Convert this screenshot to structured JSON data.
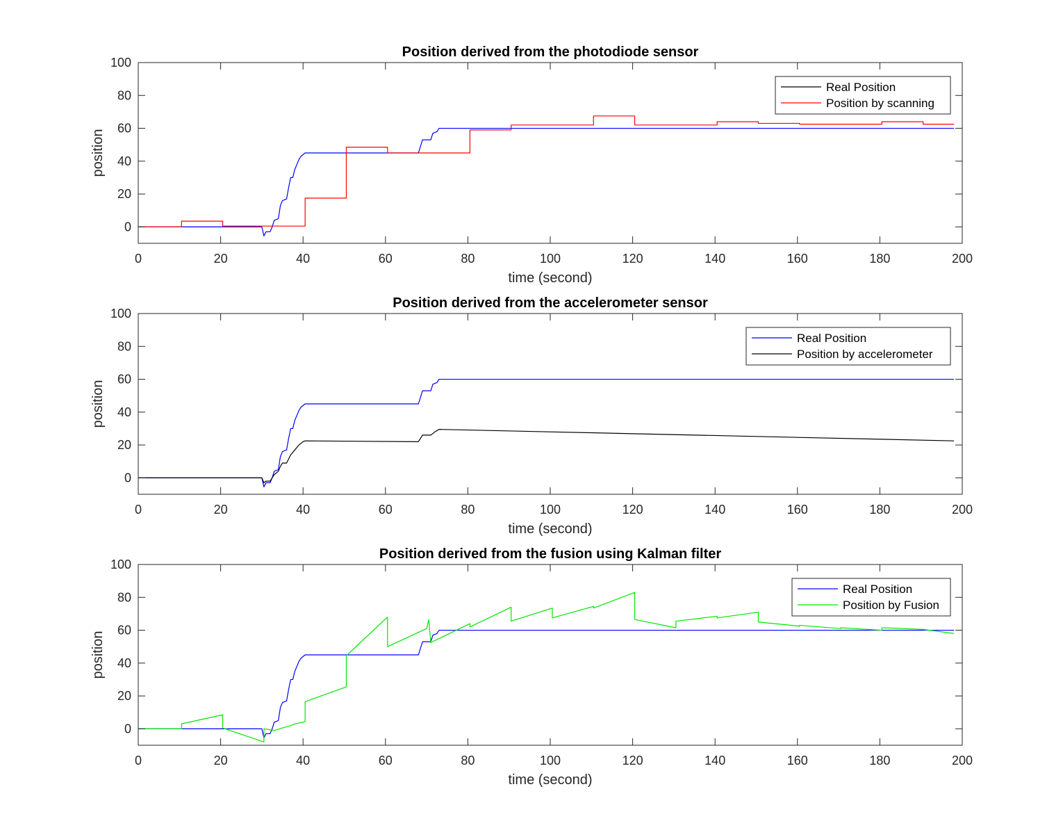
{
  "chart_data": [
    {
      "type": "line",
      "title": "Position derived from the photodiode sensor",
      "xlabel": "time (second)",
      "ylabel": "position",
      "xlim": [
        0,
        200
      ],
      "ylim": [
        -10,
        100
      ],
      "xticks": [
        0,
        20,
        40,
        60,
        80,
        100,
        120,
        140,
        160,
        180,
        200
      ],
      "yticks": [
        0,
        20,
        40,
        60,
        80,
        100
      ],
      "grid": false,
      "legend_position": "top-right",
      "series": [
        {
          "name": "Real Position",
          "color": "#0000ff",
          "legend_color": "#000000",
          "points": [
            [
              0,
              0
            ],
            [
              30,
              0
            ],
            [
              30.5,
              -5.5
            ],
            [
              31,
              -3
            ],
            [
              32,
              -3
            ],
            [
              32.5,
              0
            ],
            [
              33,
              4
            ],
            [
              34,
              5
            ],
            [
              34.5,
              13
            ],
            [
              35,
              16
            ],
            [
              36,
              17
            ],
            [
              36.5,
              24
            ],
            [
              37,
              30
            ],
            [
              37.5,
              30
            ],
            [
              38,
              35
            ],
            [
              38.5,
              38
            ],
            [
              39,
              41
            ],
            [
              39.5,
              43
            ],
            [
              40,
              44
            ],
            [
              40.5,
              45
            ],
            [
              68,
              45
            ],
            [
              69,
              53
            ],
            [
              71,
              53
            ],
            [
              71.5,
              57
            ],
            [
              72.5,
              58
            ],
            [
              73,
              60
            ],
            [
              198,
              60
            ]
          ]
        },
        {
          "name": "Position by scanning",
          "color": "#ff0000",
          "points": [
            [
              0,
              0
            ],
            [
              10.5,
              0
            ],
            [
              10.5,
              3.5
            ],
            [
              20.5,
              3.5
            ],
            [
              20.5,
              0.5
            ],
            [
              40.5,
              0.5
            ],
            [
              40.5,
              17.5
            ],
            [
              50.5,
              17.5
            ],
            [
              50.5,
              48.5
            ],
            [
              60.5,
              48.5
            ],
            [
              60.5,
              45
            ],
            [
              80.5,
              45
            ],
            [
              80.5,
              59
            ],
            [
              90.5,
              59
            ],
            [
              90.5,
              62
            ],
            [
              110.5,
              62
            ],
            [
              110.5,
              67.5
            ],
            [
              120.5,
              67.5
            ],
            [
              120.5,
              62
            ],
            [
              140.5,
              62
            ],
            [
              140.5,
              64
            ],
            [
              150.5,
              64
            ],
            [
              150.5,
              63
            ],
            [
              160.5,
              63
            ],
            [
              160.5,
              62.5
            ],
            [
              180.5,
              62.5
            ],
            [
              180.5,
              64
            ],
            [
              190.5,
              64
            ],
            [
              190.5,
              62.5
            ],
            [
              198,
              62.5
            ]
          ]
        }
      ]
    },
    {
      "type": "line",
      "title": "Position derived from the accelerometer sensor",
      "xlabel": "time (second)",
      "ylabel": "position",
      "xlim": [
        0,
        200
      ],
      "ylim": [
        -10,
        100
      ],
      "xticks": [
        0,
        20,
        40,
        60,
        80,
        100,
        120,
        140,
        160,
        180,
        200
      ],
      "yticks": [
        0,
        20,
        40,
        60,
        80,
        100
      ],
      "grid": false,
      "legend_position": "top-right",
      "series": [
        {
          "name": "Real Position",
          "color": "#0000ff",
          "points": [
            [
              0,
              0
            ],
            [
              30,
              0
            ],
            [
              30.5,
              -5.5
            ],
            [
              31,
              -3
            ],
            [
              32,
              -3
            ],
            [
              32.5,
              0
            ],
            [
              33,
              4
            ],
            [
              34,
              5
            ],
            [
              34.5,
              13
            ],
            [
              35,
              16
            ],
            [
              36,
              17
            ],
            [
              36.5,
              24
            ],
            [
              37,
              30
            ],
            [
              37.5,
              30
            ],
            [
              38,
              35
            ],
            [
              38.5,
              38
            ],
            [
              39,
              41
            ],
            [
              39.5,
              43
            ],
            [
              40,
              44
            ],
            [
              40.5,
              45
            ],
            [
              68,
              45
            ],
            [
              69,
              53
            ],
            [
              71,
              53
            ],
            [
              71.5,
              57
            ],
            [
              72.5,
              58
            ],
            [
              73,
              60
            ],
            [
              198,
              60
            ]
          ]
        },
        {
          "name": "Position by accelerometer",
          "color": "#000000",
          "points": [
            [
              0,
              0
            ],
            [
              30,
              0
            ],
            [
              30.5,
              -3
            ],
            [
              31,
              -2
            ],
            [
              32,
              -2
            ],
            [
              33,
              2
            ],
            [
              34,
              4
            ],
            [
              34.5,
              7
            ],
            [
              35,
              9
            ],
            [
              36,
              9
            ],
            [
              37,
              14
            ],
            [
              38,
              17
            ],
            [
              39,
              20
            ],
            [
              40,
              22
            ],
            [
              40.5,
              22.5
            ],
            [
              68,
              22
            ],
            [
              69,
              26
            ],
            [
              71,
              26
            ],
            [
              72,
              28
            ],
            [
              73,
              29.5
            ],
            [
              198,
              22.5
            ]
          ]
        }
      ]
    },
    {
      "type": "line",
      "title": "Position derived from the fusion using Kalman filter",
      "xlabel": "time (second)",
      "ylabel": "position",
      "xlim": [
        0,
        200
      ],
      "ylim": [
        -10,
        100
      ],
      "xticks": [
        0,
        20,
        40,
        60,
        80,
        100,
        120,
        140,
        160,
        180,
        200
      ],
      "yticks": [
        0,
        20,
        40,
        60,
        80,
        100
      ],
      "grid": false,
      "legend_position": "top-right",
      "series": [
        {
          "name": "Real Position",
          "color": "#0000ff",
          "points": [
            [
              0,
              0
            ],
            [
              30,
              0
            ],
            [
              30.5,
              -5.5
            ],
            [
              31,
              -3
            ],
            [
              32,
              -3
            ],
            [
              32.5,
              0
            ],
            [
              33,
              4
            ],
            [
              34,
              5
            ],
            [
              34.5,
              13
            ],
            [
              35,
              16
            ],
            [
              36,
              17
            ],
            [
              36.5,
              24
            ],
            [
              37,
              30
            ],
            [
              37.5,
              30
            ],
            [
              38,
              35
            ],
            [
              38.5,
              38
            ],
            [
              39,
              41
            ],
            [
              39.5,
              43
            ],
            [
              40,
              44
            ],
            [
              40.5,
              45
            ],
            [
              68,
              45
            ],
            [
              69,
              53
            ],
            [
              71,
              53
            ],
            [
              71.5,
              57
            ],
            [
              72.5,
              58
            ],
            [
              73,
              60
            ],
            [
              198,
              60
            ]
          ]
        },
        {
          "name": "Position by Fusion",
          "color": "#00e600",
          "points": [
            [
              0,
              0
            ],
            [
              10.5,
              0
            ],
            [
              10.5,
              3
            ],
            [
              20.5,
              8.5
            ],
            [
              20.5,
              0.5
            ],
            [
              30.5,
              -8
            ],
            [
              30.5,
              0
            ],
            [
              33,
              -1
            ],
            [
              37,
              2
            ],
            [
              38,
              3
            ],
            [
              40,
              4
            ],
            [
              40.5,
              4.5
            ],
            [
              40.5,
              16.5
            ],
            [
              50.5,
              25.5
            ],
            [
              50.5,
              44.5
            ],
            [
              60.5,
              68
            ],
            [
              60.5,
              50
            ],
            [
              70,
              61
            ],
            [
              70.5,
              66.5
            ],
            [
              71,
              52.5
            ],
            [
              80.5,
              64
            ],
            [
              80.5,
              62
            ],
            [
              90.5,
              74
            ],
            [
              90.5,
              65.5
            ],
            [
              100.5,
              73.5
            ],
            [
              100.5,
              67.5
            ],
            [
              110.5,
              74.5
            ],
            [
              110.5,
              73.5
            ],
            [
              120.5,
              83
            ],
            [
              120.5,
              66.5
            ],
            [
              130.5,
              61.5
            ],
            [
              130.5,
              65.5
            ],
            [
              140.5,
              68.5
            ],
            [
              140.5,
              67.5
            ],
            [
              150.5,
              71
            ],
            [
              150.5,
              65
            ],
            [
              160.5,
              62.5
            ],
            [
              160.5,
              63
            ],
            [
              170.5,
              61
            ],
            [
              170.5,
              61.5
            ],
            [
              180.5,
              60
            ],
            [
              180.5,
              61.5
            ],
            [
              190.5,
              60.5
            ],
            [
              198,
              58
            ]
          ]
        }
      ]
    }
  ]
}
